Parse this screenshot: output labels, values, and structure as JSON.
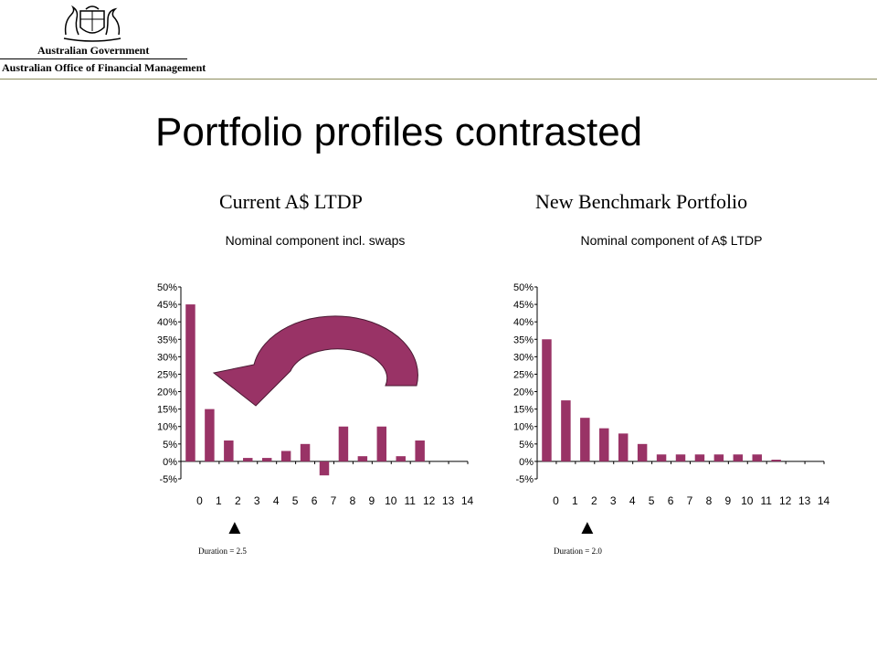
{
  "header": {
    "government": "Australian Government",
    "office": "Australian Office of Financial Management"
  },
  "slide": {
    "title": "Portfolio profiles contrasted"
  },
  "panels": [
    {
      "heading": "Current A$ LTDP",
      "duration": "Duration = 2.5"
    },
    {
      "heading": "New Benchmark Portfolio",
      "duration": "Duration = 2.0"
    }
  ],
  "colors": {
    "bar": "#993366",
    "arrow": "#993366",
    "rule": "#8c8c5c"
  },
  "chart_data": [
    {
      "type": "bar",
      "title": "Nominal component incl. swaps",
      "categories": [
        "0",
        "1",
        "2",
        "3",
        "4",
        "5",
        "6",
        "7",
        "8",
        "9",
        "10",
        "11",
        "12",
        "13",
        "14"
      ],
      "values": [
        45,
        15,
        6,
        1,
        1,
        3,
        5,
        -4,
        10,
        1.5,
        10,
        1.5,
        6,
        0,
        0
      ],
      "ylim": [
        -5,
        50
      ],
      "yticks": [
        "-5%",
        "0%",
        "5%",
        "10%",
        "15%",
        "20%",
        "25%",
        "30%",
        "35%",
        "40%",
        "45%",
        "50%"
      ],
      "xlabel": "",
      "ylabel": "",
      "grid": false,
      "legend": "none",
      "annotation": "curved arrow pointing left"
    },
    {
      "type": "bar",
      "title": "Nominal component of A$ LTDP",
      "categories": [
        "0",
        "1",
        "2",
        "3",
        "4",
        "5",
        "6",
        "7",
        "8",
        "9",
        "10",
        "11",
        "12",
        "13",
        "14"
      ],
      "values": [
        35,
        17.5,
        12.5,
        9.5,
        8,
        5,
        2,
        2,
        2,
        2,
        2,
        2,
        0.5,
        0,
        0
      ],
      "ylim": [
        -5,
        50
      ],
      "yticks": [
        "-5%",
        "0%",
        "5%",
        "10%",
        "15%",
        "20%",
        "25%",
        "30%",
        "35%",
        "40%",
        "45%",
        "50%"
      ],
      "xlabel": "",
      "ylabel": "",
      "grid": false,
      "legend": "none"
    }
  ]
}
